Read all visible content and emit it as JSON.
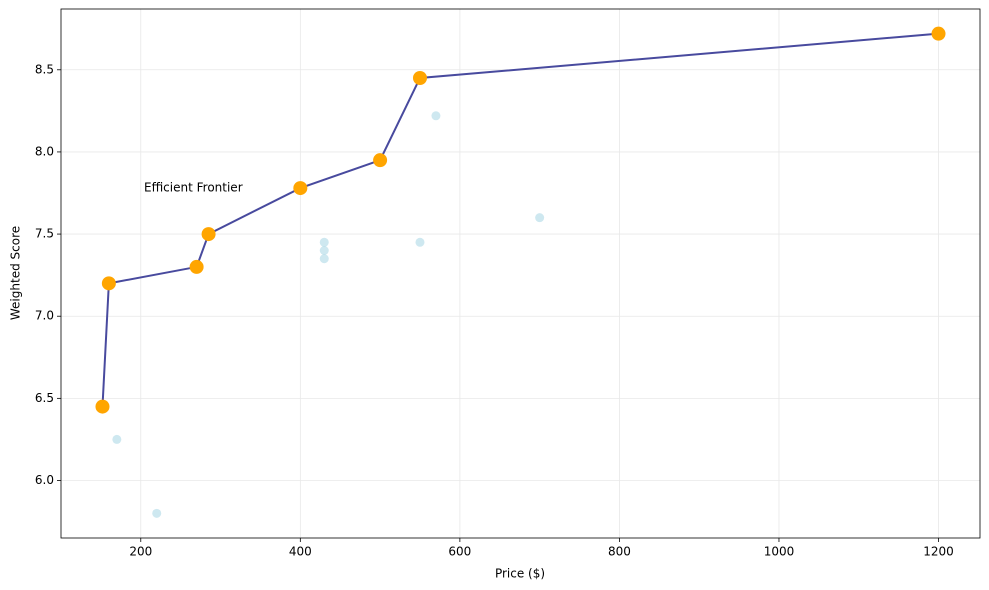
{
  "chart_data": {
    "type": "scatter",
    "xlabel": "Price ($)",
    "ylabel": "Weighted Score",
    "annotation": "Efficient Frontier",
    "xlim": [
      100,
      1252
    ],
    "ylim": [
      5.65,
      8.87
    ],
    "xticks": [
      200,
      400,
      600,
      800,
      1000,
      1200
    ],
    "yticks": [
      6.0,
      6.5,
      7.0,
      7.5,
      8.0,
      8.5
    ],
    "grid": true,
    "series": [
      {
        "color": "#add8e6",
        "line": false,
        "x": [
          170,
          220,
          430,
          430,
          430,
          550,
          570,
          700
        ],
        "values": [
          6.25,
          5.8,
          7.45,
          7.4,
          7.35,
          7.45,
          8.22,
          7.6
        ]
      },
      {
        "color": "#ffa500",
        "line_color": "#484a9e",
        "line": true,
        "x": [
          152,
          160,
          270,
          285,
          400,
          500,
          550,
          1200
        ],
        "values": [
          6.45,
          7.2,
          7.3,
          7.5,
          7.78,
          7.95,
          8.45,
          8.72
        ]
      }
    ]
  }
}
